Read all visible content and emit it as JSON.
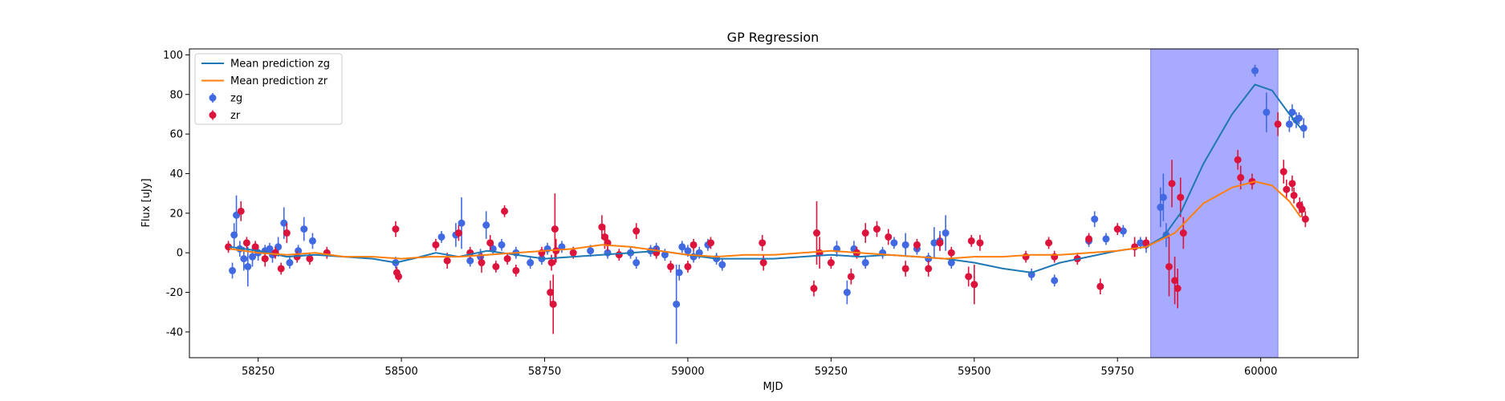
{
  "chart_data": {
    "type": "scatter",
    "title": "GP Regression",
    "xlabel": "MJD",
    "ylabel": "Flux [uJy]",
    "xlim": [
      58130,
      60170
    ],
    "ylim": [
      -53,
      103
    ],
    "xticks": [
      58250,
      58500,
      58750,
      59000,
      59250,
      59500,
      59750,
      60000
    ],
    "yticks": [
      -40,
      -20,
      0,
      20,
      40,
      60,
      80,
      100
    ],
    "grid": false,
    "legend_position": "top-left",
    "shaded_region": {
      "x_start": 59808,
      "x_end": 60030,
      "color": "#a8aaff"
    },
    "legend": [
      {
        "label": "Mean prediction zg",
        "kind": "line",
        "color": "#1f77b4"
      },
      {
        "label": "Mean prediction zr",
        "kind": "line",
        "color": "#ff7f0e"
      },
      {
        "label": "zg",
        "kind": "errorbar",
        "color": "#4169e1"
      },
      {
        "label": "zr",
        "kind": "errorbar",
        "color": "#dc143c"
      }
    ],
    "series": [
      {
        "name": "Mean prediction zg",
        "kind": "line",
        "color": "#1f77b4",
        "points": [
          [
            58200,
            3
          ],
          [
            58250,
            1
          ],
          [
            58300,
            -2
          ],
          [
            58350,
            -1
          ],
          [
            58400,
            -2
          ],
          [
            58450,
            -3
          ],
          [
            58490,
            -5
          ],
          [
            58520,
            -3
          ],
          [
            58560,
            0
          ],
          [
            58600,
            -2
          ],
          [
            58650,
            1
          ],
          [
            58700,
            -1
          ],
          [
            58750,
            -3
          ],
          [
            58800,
            -2
          ],
          [
            58850,
            -1
          ],
          [
            58900,
            0
          ],
          [
            58950,
            1
          ],
          [
            59000,
            -1
          ],
          [
            59050,
            -3
          ],
          [
            59100,
            -3
          ],
          [
            59150,
            -3
          ],
          [
            59200,
            -2
          ],
          [
            59250,
            -1
          ],
          [
            59300,
            -2
          ],
          [
            59350,
            -1
          ],
          [
            59400,
            -2
          ],
          [
            59450,
            -3
          ],
          [
            59500,
            -5
          ],
          [
            59550,
            -8
          ],
          [
            59600,
            -10
          ],
          [
            59650,
            -5
          ],
          [
            59700,
            -2
          ],
          [
            59750,
            1
          ],
          [
            59800,
            3
          ],
          [
            59830,
            8
          ],
          [
            59860,
            20
          ],
          [
            59900,
            45
          ],
          [
            59950,
            70
          ],
          [
            59990,
            85
          ],
          [
            60020,
            82
          ],
          [
            60050,
            70
          ],
          [
            60070,
            63
          ]
        ]
      },
      {
        "name": "Mean prediction zr",
        "kind": "line",
        "color": "#ff7f0e",
        "points": [
          [
            58200,
            2
          ],
          [
            58250,
            0
          ],
          [
            58300,
            -1
          ],
          [
            58350,
            0
          ],
          [
            58400,
            -2
          ],
          [
            58450,
            -2
          ],
          [
            58500,
            -3
          ],
          [
            58550,
            -2
          ],
          [
            58600,
            -2
          ],
          [
            58650,
            -1
          ],
          [
            58700,
            0
          ],
          [
            58750,
            1
          ],
          [
            58800,
            2
          ],
          [
            58850,
            4
          ],
          [
            58900,
            3
          ],
          [
            58950,
            1
          ],
          [
            59000,
            -1
          ],
          [
            59050,
            -2
          ],
          [
            59100,
            -1
          ],
          [
            59150,
            -1
          ],
          [
            59200,
            0
          ],
          [
            59250,
            1
          ],
          [
            59300,
            0
          ],
          [
            59350,
            -1
          ],
          [
            59400,
            -2
          ],
          [
            59450,
            -3
          ],
          [
            59500,
            -2
          ],
          [
            59550,
            -2
          ],
          [
            59600,
            -1
          ],
          [
            59650,
            -1
          ],
          [
            59700,
            0
          ],
          [
            59750,
            1
          ],
          [
            59800,
            3
          ],
          [
            59850,
            10
          ],
          [
            59900,
            25
          ],
          [
            59950,
            33
          ],
          [
            59990,
            36
          ],
          [
            60020,
            34
          ],
          [
            60050,
            26
          ],
          [
            60070,
            18
          ]
        ]
      },
      {
        "name": "zg",
        "kind": "errorbar",
        "color": "#4169e1",
        "points": [
          [
            58205,
            -9,
            4
          ],
          [
            58208,
            9,
            6
          ],
          [
            58212,
            19,
            10
          ],
          [
            58218,
            2,
            4
          ],
          [
            58225,
            -3,
            6
          ],
          [
            58232,
            -7,
            10
          ],
          [
            58240,
            -2,
            5
          ],
          [
            58250,
            0,
            4
          ],
          [
            58262,
            1,
            3
          ],
          [
            58270,
            2,
            3
          ],
          [
            58275,
            -1,
            4
          ],
          [
            58285,
            3,
            5
          ],
          [
            58295,
            15,
            8
          ],
          [
            58305,
            -5,
            3
          ],
          [
            58320,
            1,
            3
          ],
          [
            58330,
            12,
            6
          ],
          [
            58345,
            6,
            4
          ],
          [
            58490,
            -5,
            3
          ],
          [
            58570,
            8,
            3
          ],
          [
            58595,
            9,
            6
          ],
          [
            58605,
            15,
            13
          ],
          [
            58620,
            -4,
            3
          ],
          [
            58638,
            -2,
            4
          ],
          [
            58648,
            14,
            7
          ],
          [
            58660,
            2,
            3
          ],
          [
            58675,
            4,
            3
          ],
          [
            58700,
            0,
            3
          ],
          [
            58725,
            -5,
            3
          ],
          [
            58745,
            -3,
            3
          ],
          [
            58755,
            2,
            3
          ],
          [
            58780,
            3,
            3
          ],
          [
            58830,
            1,
            3
          ],
          [
            58860,
            0,
            3
          ],
          [
            58900,
            0,
            3
          ],
          [
            58910,
            -5,
            3
          ],
          [
            58935,
            1,
            3
          ],
          [
            58945,
            2,
            3
          ],
          [
            58960,
            -1,
            3
          ],
          [
            58980,
            -26,
            20
          ],
          [
            58985,
            -10,
            4
          ],
          [
            58990,
            3,
            3
          ],
          [
            59000,
            1,
            3
          ],
          [
            59010,
            -2,
            3
          ],
          [
            59020,
            0,
            3
          ],
          [
            59035,
            4,
            3
          ],
          [
            59050,
            -3,
            3
          ],
          [
            59060,
            -6,
            3
          ],
          [
            59260,
            2,
            4
          ],
          [
            59278,
            -20,
            6
          ],
          [
            59290,
            2,
            4
          ],
          [
            59310,
            -5,
            3
          ],
          [
            59340,
            0,
            3
          ],
          [
            59360,
            5,
            3
          ],
          [
            59380,
            4,
            6
          ],
          [
            59400,
            2,
            3
          ],
          [
            59420,
            -3,
            3
          ],
          [
            59430,
            5,
            8
          ],
          [
            59440,
            6,
            5
          ],
          [
            59450,
            10,
            9
          ],
          [
            59460,
            -5,
            3
          ],
          [
            59600,
            -11,
            3
          ],
          [
            59640,
            -14,
            3
          ],
          [
            59700,
            6,
            3
          ],
          [
            59710,
            17,
            4
          ],
          [
            59730,
            7,
            3
          ],
          [
            59760,
            11,
            3
          ],
          [
            59790,
            5,
            3
          ],
          [
            59800,
            4,
            4
          ],
          [
            59825,
            23,
            10
          ],
          [
            59830,
            28,
            12
          ],
          [
            59835,
            9,
            6
          ],
          [
            59990,
            92,
            3
          ],
          [
            60010,
            71,
            10
          ],
          [
            60050,
            65,
            4
          ],
          [
            60055,
            71,
            4
          ],
          [
            60062,
            67,
            4
          ],
          [
            60067,
            68,
            3
          ],
          [
            60075,
            63,
            5
          ]
        ]
      },
      {
        "name": "zr",
        "kind": "errorbar",
        "color": "#dc143c",
        "points": [
          [
            58198,
            3,
            3
          ],
          [
            58220,
            21,
            5
          ],
          [
            58230,
            5,
            3
          ],
          [
            58245,
            3,
            3
          ],
          [
            58262,
            -3,
            4
          ],
          [
            58280,
            0,
            3
          ],
          [
            58290,
            -8,
            3
          ],
          [
            58300,
            10,
            5
          ],
          [
            58318,
            -2,
            3
          ],
          [
            58340,
            -3,
            3
          ],
          [
            58370,
            0,
            3
          ],
          [
            58490,
            12,
            4
          ],
          [
            58492,
            -10,
            3
          ],
          [
            58495,
            -12,
            3
          ],
          [
            58560,
            4,
            3
          ],
          [
            58580,
            -4,
            4
          ],
          [
            58600,
            10,
            4
          ],
          [
            58620,
            0,
            3
          ],
          [
            58640,
            -5,
            5
          ],
          [
            58655,
            5,
            4
          ],
          [
            58665,
            -7,
            3
          ],
          [
            58680,
            21,
            3
          ],
          [
            58685,
            -3,
            3
          ],
          [
            58700,
            -9,
            3
          ],
          [
            58745,
            0,
            3
          ],
          [
            58760,
            -20,
            6
          ],
          [
            58762,
            -5,
            4
          ],
          [
            58765,
            -26,
            15
          ],
          [
            58768,
            12,
            18
          ],
          [
            58770,
            1,
            6
          ],
          [
            58800,
            0,
            3
          ],
          [
            58850,
            13,
            6
          ],
          [
            58855,
            8,
            6
          ],
          [
            58860,
            5,
            4
          ],
          [
            58880,
            -1,
            3
          ],
          [
            58910,
            11,
            4
          ],
          [
            58945,
            0,
            3
          ],
          [
            58970,
            -7,
            3
          ],
          [
            59000,
            -7,
            3
          ],
          [
            59010,
            4,
            3
          ],
          [
            59040,
            5,
            3
          ],
          [
            59130,
            5,
            4
          ],
          [
            59132,
            -5,
            4
          ],
          [
            59220,
            -18,
            4
          ],
          [
            59225,
            10,
            16
          ],
          [
            59230,
            0,
            8
          ],
          [
            59250,
            -5,
            3
          ],
          [
            59285,
            -12,
            4
          ],
          [
            59295,
            0,
            3
          ],
          [
            59310,
            10,
            5
          ],
          [
            59330,
            12,
            4
          ],
          [
            59350,
            8,
            4
          ],
          [
            59380,
            -8,
            4
          ],
          [
            59400,
            4,
            3
          ],
          [
            59420,
            -8,
            4
          ],
          [
            59440,
            5,
            4
          ],
          [
            59460,
            0,
            3
          ],
          [
            59490,
            -12,
            5
          ],
          [
            59495,
            6,
            3
          ],
          [
            59500,
            -16,
            10
          ],
          [
            59510,
            5,
            4
          ],
          [
            59590,
            -2,
            3
          ],
          [
            59630,
            5,
            3
          ],
          [
            59640,
            -2,
            3
          ],
          [
            59680,
            -3,
            3
          ],
          [
            59700,
            7,
            3
          ],
          [
            59720,
            -17,
            4
          ],
          [
            59750,
            12,
            3
          ],
          [
            59780,
            3,
            5
          ],
          [
            59800,
            5,
            3
          ],
          [
            59840,
            -7,
            15
          ],
          [
            59845,
            35,
            12
          ],
          [
            59850,
            -14,
            12
          ],
          [
            59855,
            -18,
            10
          ],
          [
            59860,
            28,
            10
          ],
          [
            59865,
            10,
            8
          ],
          [
            59960,
            47,
            5
          ],
          [
            59965,
            38,
            6
          ],
          [
            59985,
            36,
            4
          ],
          [
            60030,
            65,
            6
          ],
          [
            60040,
            41,
            6
          ],
          [
            60045,
            32,
            5
          ],
          [
            60055,
            35,
            4
          ],
          [
            60058,
            29,
            4
          ],
          [
            60068,
            24,
            4
          ],
          [
            60072,
            22,
            4
          ],
          [
            60078,
            17,
            4
          ]
        ]
      }
    ]
  }
}
